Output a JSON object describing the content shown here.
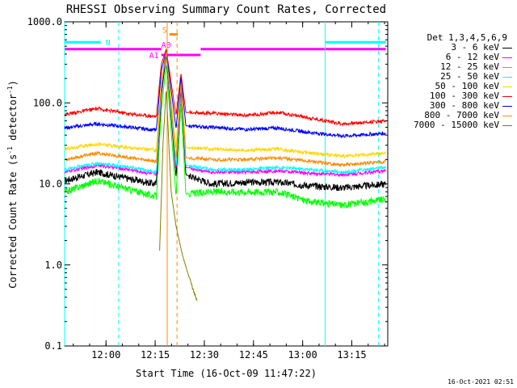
{
  "chart_data": {
    "type": "line",
    "title": "RHESSI Observing Summary Count Rates, Corrected",
    "xlabel": "Start Time (16-Oct-09 11:47:22)",
    "ylabel": "Corrected Count Rate (s",
    "ylabel_exp1": "-1",
    "ylabel_mid": " detector",
    "ylabel_exp2": "-1",
    "ylabel_end": ")",
    "yscale": "log",
    "ylim": [
      0.1,
      1000
    ],
    "xlim": [
      "11:47:22",
      "13:26:00"
    ],
    "y_ticks": [
      {
        "value": 1000,
        "label": "1000.0"
      },
      {
        "value": 100,
        "label": "100.0"
      },
      {
        "value": 10,
        "label": "10.0"
      },
      {
        "value": 1,
        "label": "1.0"
      },
      {
        "value": 0.1,
        "label": "0.1"
      }
    ],
    "x_ticks": [
      {
        "minutes": 12.63,
        "label": "12:00"
      },
      {
        "minutes": 27.63,
        "label": "12:15"
      },
      {
        "minutes": 42.63,
        "label": "12:30"
      },
      {
        "minutes": 57.63,
        "label": "12:45"
      },
      {
        "minutes": 72.63,
        "label": "13:00"
      },
      {
        "minutes": 87.63,
        "label": "13:15"
      }
    ],
    "legend_title": "Det 1,3,4,5,6,9",
    "series": [
      {
        "name": "3 - 6 keV",
        "color": "#000000",
        "x": [
          0,
          10,
          20,
          28,
          29.5,
          31,
          34,
          35.5,
          37,
          45,
          55,
          65,
          75,
          85,
          98
        ],
        "y": [
          11,
          14,
          11.5,
          10,
          120,
          400,
          12,
          150,
          13,
          10,
          10.5,
          10.5,
          9.5,
          9,
          10
        ]
      },
      {
        "name": "6 - 12 keV",
        "color": "#ff00ff",
        "x": [
          0,
          10,
          20,
          28,
          29.5,
          31,
          34,
          35.5,
          37,
          45,
          55,
          65,
          75,
          85,
          98
        ],
        "y": [
          14,
          17,
          15,
          13,
          150,
          430,
          15,
          170,
          16,
          14,
          14,
          14.5,
          13.5,
          13,
          14.5
        ]
      },
      {
        "name": "12 - 25 keV",
        "color": "#00ff00",
        "x": [
          0,
          10,
          20,
          28,
          29.5,
          31,
          34,
          35.5,
          37,
          45,
          55,
          65,
          75,
          85,
          98
        ],
        "y": [
          8,
          11,
          8.5,
          7,
          80,
          300,
          7,
          100,
          7.5,
          8,
          8,
          8,
          6,
          5.5,
          6.5
        ]
      },
      {
        "name": "25 - 50 keV",
        "color": "#00ffff",
        "x": [
          0,
          10,
          20,
          28,
          29.5,
          31,
          34,
          35.5,
          37,
          45,
          55,
          65,
          75,
          85,
          98
        ],
        "y": [
          15,
          18,
          16,
          14,
          160,
          440,
          16,
          180,
          17,
          15,
          15,
          16,
          15,
          14,
          16
        ]
      },
      {
        "name": "50 - 100 keV",
        "color": "#ffd700",
        "x": [
          0,
          10,
          20,
          28,
          29.5,
          31,
          34,
          35.5,
          37,
          45,
          55,
          65,
          75,
          85,
          98
        ],
        "y": [
          27,
          31,
          28,
          26,
          180,
          450,
          27,
          190,
          28,
          27,
          26,
          27,
          24,
          22,
          24
        ]
      },
      {
        "name": "100 - 300 keV",
        "color": "#ff0000",
        "x": [
          0,
          10,
          20,
          28,
          29.5,
          31,
          34,
          35.5,
          37,
          45,
          55,
          65,
          75,
          85,
          98
        ],
        "y": [
          72,
          85,
          73,
          68,
          300,
          460,
          70,
          230,
          76,
          75,
          70,
          76,
          65,
          55,
          60
        ]
      },
      {
        "name": "300 - 800 keV",
        "color": "#0000ff",
        "x": [
          0,
          10,
          20,
          28,
          29.5,
          31,
          34,
          35.5,
          37,
          45,
          55,
          65,
          75,
          85,
          98
        ],
        "y": [
          49,
          55,
          50,
          46,
          250,
          440,
          48,
          210,
          52,
          50,
          47,
          49,
          43,
          39,
          42
        ]
      },
      {
        "name": "800 - 7000 keV",
        "color": "#ff8c00",
        "x": [
          0,
          10,
          20,
          28,
          29.5,
          31,
          34,
          35.5,
          37,
          45,
          55,
          65,
          75,
          85,
          98
        ],
        "y": [
          20,
          24,
          21,
          19,
          170,
          440,
          20,
          180,
          21,
          20,
          20,
          21,
          19,
          17,
          19
        ]
      },
      {
        "name": "7000 - 15000 keV",
        "color": "#808000",
        "x": [
          29,
          30,
          31,
          32.5,
          34,
          36,
          38,
          40.5
        ],
        "y": [
          1.5,
          30,
          150,
          8,
          3,
          1.3,
          0.7,
          0.35
        ]
      }
    ],
    "flag_bars": [
      {
        "label": "N",
        "color": "#00ffff",
        "segments": [
          [
            0,
            11
          ],
          [
            79.5,
            98
          ]
        ],
        "level": 560
      },
      {
        "label": "S",
        "color": "#ff8c00",
        "segments": [
          [
            32,
            34.5
          ]
        ],
        "level": 700
      },
      {
        "label": "A1",
        "color": "#ff00ff",
        "segments": [
          [
            29.5,
            41.5
          ]
        ],
        "level": 390
      },
      {
        "label": "A0",
        "color": "#ff00ff",
        "segments": [
          [
            0,
            29.5
          ],
          [
            41.5,
            98
          ]
        ],
        "level": 460
      }
    ],
    "vertical_markers": [
      {
        "minutes": 0,
        "color": "#00ffff",
        "style": "solid"
      },
      {
        "minutes": 16.5,
        "color": "#00ffff",
        "style": "dashed"
      },
      {
        "minutes": 31.3,
        "color": "#ff8c00",
        "style": "solid"
      },
      {
        "minutes": 34.3,
        "color": "#ff8c00",
        "style": "dashed"
      },
      {
        "minutes": 79.5,
        "color": "#00ffff",
        "style": "solid"
      },
      {
        "minutes": 95.8,
        "color": "#00ffff",
        "style": "dashed"
      }
    ],
    "footer_date": "16-Oct-2021 02:51"
  }
}
